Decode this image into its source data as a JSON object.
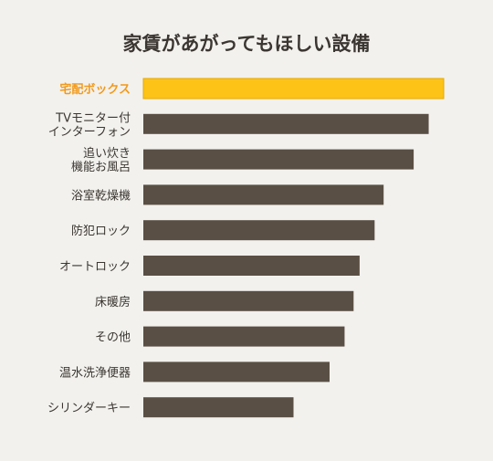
{
  "chart_data": {
    "type": "bar",
    "orientation": "horizontal",
    "title": "家賃があがってもほしい設備",
    "categories": [
      [
        "宅配ボックス"
      ],
      [
        "TVモニター付",
        "インターフォン"
      ],
      [
        "追い炊き",
        "機能お風呂"
      ],
      [
        "浴室乾燥機"
      ],
      [
        "防犯ロック"
      ],
      [
        "オートロック"
      ],
      [
        "床暖房"
      ],
      [
        "その他"
      ],
      [
        "温水洗浄便器"
      ],
      [
        "シリンダーキー"
      ]
    ],
    "values": [
      100,
      95,
      90,
      80,
      77,
      72,
      70,
      67,
      62,
      50
    ],
    "xlim": [
      0,
      100
    ],
    "highlight_index": 0,
    "colors": {
      "highlight": "#fdc317",
      "bar": "#5a4f44",
      "highlight_label": "#f29a1c"
    },
    "grid": false,
    "legend": "none"
  }
}
